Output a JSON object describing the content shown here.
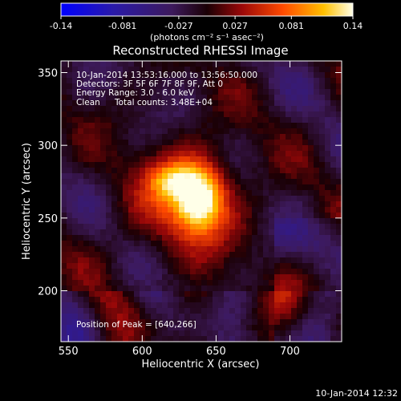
{
  "chart_data": {
    "type": "heatmap",
    "title": "Reconstructed RHESSI Image",
    "xlabel": "Heliocentric X (arcsec)",
    "ylabel": "Heliocentric Y (arcsec)",
    "xlim": [
      545,
      735
    ],
    "ylim": [
      165,
      358
    ],
    "x_ticks": [
      550,
      600,
      650,
      700
    ],
    "y_ticks": [
      200,
      250,
      300,
      350
    ],
    "colorbar": {
      "range": [
        -0.14,
        0.14
      ],
      "tick_values": [
        -0.14,
        -0.081,
        -0.027,
        0.027,
        0.081,
        0.14
      ],
      "tick_labels": [
        "-0.14",
        "-0.081",
        "-0.027",
        "0.027",
        "0.081",
        "0.14"
      ],
      "unit_label": "(photons cm⁻² s⁻¹ asec⁻²)"
    },
    "annotations": [
      "10-Jan-2014 13:53:16.000 to 13:56:50.000",
      "Detectors: 3F 5F 6F 7F 8F 9F, Att 0",
      "Energy Range: 3.0 - 6.0 keV",
      "Clean",
      "Total counts: 3.48E+04"
    ],
    "peak_label": "Position of Peak = [640,266]",
    "peak_position": [
      640,
      266
    ],
    "sources": [
      {
        "x": 638,
        "y": 264,
        "peak": 0.14
      },
      {
        "x": 618,
        "y": 276,
        "peak": 0.09
      }
    ],
    "grid": false,
    "colors": {
      "background": "#000000",
      "text": "#ffffff"
    }
  },
  "footer": {
    "timestamp": "10-Jan-2014 12:32"
  }
}
